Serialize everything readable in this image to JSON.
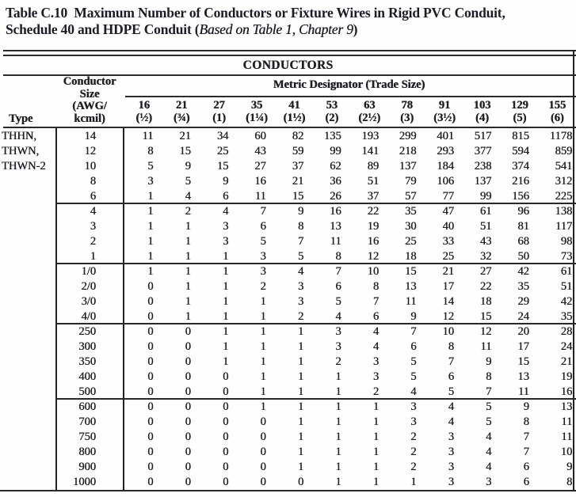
{
  "colors": {
    "paper": "#fefefe",
    "ink": "#1e1e24",
    "rule": "#28282c"
  },
  "title": {
    "line1": "Table C.10  Maximum Number of Conductors or Fixture Wires in Rigid PVC Conduit,",
    "line2_prefix": "Schedule 40 and HDPE Conduit (",
    "line2_italic": "Based on Table 1, Chapter 9",
    "line2_suffix": ")"
  },
  "table": {
    "conductors_header": "CONDUCTORS",
    "type_header": "Type",
    "size_header_lines": [
      "Conductor",
      "Size",
      "(AWG/",
      "kcmil)"
    ],
    "metric_header": "Metric Designator (Trade Size)",
    "columns": [
      {
        "metric": "16",
        "trade": "(½)"
      },
      {
        "metric": "21",
        "trade": "(¾)"
      },
      {
        "metric": "27",
        "trade": "(1)"
      },
      {
        "metric": "35",
        "trade": "(1¼)"
      },
      {
        "metric": "41",
        "trade": "(1½)"
      },
      {
        "metric": "53",
        "trade": "(2)"
      },
      {
        "metric": "63",
        "trade": "(2½)"
      },
      {
        "metric": "78",
        "trade": "(3)"
      },
      {
        "metric": "91",
        "trade": "(3½)"
      },
      {
        "metric": "103",
        "trade": "(4)"
      },
      {
        "metric": "129",
        "trade": "(5)"
      },
      {
        "metric": "155",
        "trade": "(6)"
      }
    ],
    "type_label_lines": [
      "THHN,",
      "THWN,",
      "THWN-2"
    ],
    "groups": [
      {
        "rows": [
          {
            "size": "14",
            "values": [
              11,
              21,
              34,
              60,
              82,
              135,
              193,
              299,
              401,
              517,
              815,
              1178
            ]
          },
          {
            "size": "12",
            "values": [
              8,
              15,
              25,
              43,
              59,
              99,
              141,
              218,
              293,
              377,
              594,
              859
            ]
          },
          {
            "size": "10",
            "values": [
              5,
              9,
              15,
              27,
              37,
              62,
              89,
              137,
              184,
              238,
              374,
              541
            ]
          },
          {
            "size": "8",
            "values": [
              3,
              5,
              9,
              16,
              21,
              36,
              51,
              79,
              106,
              137,
              216,
              312
            ]
          },
          {
            "size": "6",
            "values": [
              1,
              4,
              6,
              11,
              15,
              26,
              37,
              57,
              77,
              99,
              156,
              225
            ]
          }
        ]
      },
      {
        "rows": [
          {
            "size": "4",
            "values": [
              1,
              2,
              4,
              7,
              9,
              16,
              22,
              35,
              47,
              61,
              96,
              138
            ]
          },
          {
            "size": "3",
            "values": [
              1,
              1,
              3,
              6,
              8,
              13,
              19,
              30,
              40,
              51,
              81,
              117
            ]
          },
          {
            "size": "2",
            "values": [
              1,
              1,
              3,
              5,
              7,
              11,
              16,
              25,
              33,
              43,
              68,
              98
            ]
          },
          {
            "size": "1",
            "values": [
              1,
              1,
              1,
              3,
              5,
              8,
              12,
              18,
              25,
              32,
              50,
              73
            ]
          }
        ]
      },
      {
        "rows": [
          {
            "size": "1/0",
            "values": [
              1,
              1,
              1,
              3,
              4,
              7,
              10,
              15,
              21,
              27,
              42,
              61
            ]
          },
          {
            "size": "2/0",
            "values": [
              0,
              1,
              1,
              2,
              3,
              6,
              8,
              13,
              17,
              22,
              35,
              51
            ]
          },
          {
            "size": "3/0",
            "values": [
              0,
              1,
              1,
              1,
              3,
              5,
              7,
              11,
              14,
              18,
              29,
              42
            ]
          },
          {
            "size": "4/0",
            "values": [
              0,
              1,
              1,
              1,
              2,
              4,
              6,
              9,
              12,
              15,
              24,
              35
            ]
          }
        ]
      },
      {
        "rows": [
          {
            "size": "250",
            "values": [
              0,
              0,
              1,
              1,
              1,
              3,
              4,
              7,
              10,
              12,
              20,
              28
            ]
          },
          {
            "size": "300",
            "values": [
              0,
              0,
              1,
              1,
              1,
              3,
              4,
              6,
              8,
              11,
              17,
              24
            ]
          },
          {
            "size": "350",
            "values": [
              0,
              0,
              1,
              1,
              1,
              2,
              3,
              5,
              7,
              9,
              15,
              21
            ]
          },
          {
            "size": "400",
            "values": [
              0,
              0,
              0,
              1,
              1,
              1,
              3,
              5,
              6,
              8,
              13,
              19
            ]
          },
          {
            "size": "500",
            "values": [
              0,
              0,
              0,
              1,
              1,
              1,
              2,
              4,
              5,
              7,
              11,
              16
            ]
          }
        ]
      },
      {
        "rows": [
          {
            "size": "600",
            "values": [
              0,
              0,
              0,
              1,
              1,
              1,
              1,
              3,
              4,
              5,
              9,
              13
            ]
          },
          {
            "size": "700",
            "values": [
              0,
              0,
              0,
              0,
              1,
              1,
              1,
              3,
              4,
              5,
              8,
              11
            ]
          },
          {
            "size": "750",
            "values": [
              0,
              0,
              0,
              0,
              1,
              1,
              1,
              2,
              3,
              4,
              7,
              11
            ]
          },
          {
            "size": "800",
            "values": [
              0,
              0,
              0,
              0,
              1,
              1,
              1,
              2,
              3,
              4,
              7,
              10
            ]
          },
          {
            "size": "900",
            "values": [
              0,
              0,
              0,
              0,
              1,
              1,
              1,
              2,
              3,
              4,
              6,
              9
            ]
          },
          {
            "size": "1000",
            "values": [
              0,
              0,
              0,
              0,
              0,
              1,
              1,
              1,
              3,
              3,
              6,
              8
            ]
          }
        ]
      }
    ]
  }
}
